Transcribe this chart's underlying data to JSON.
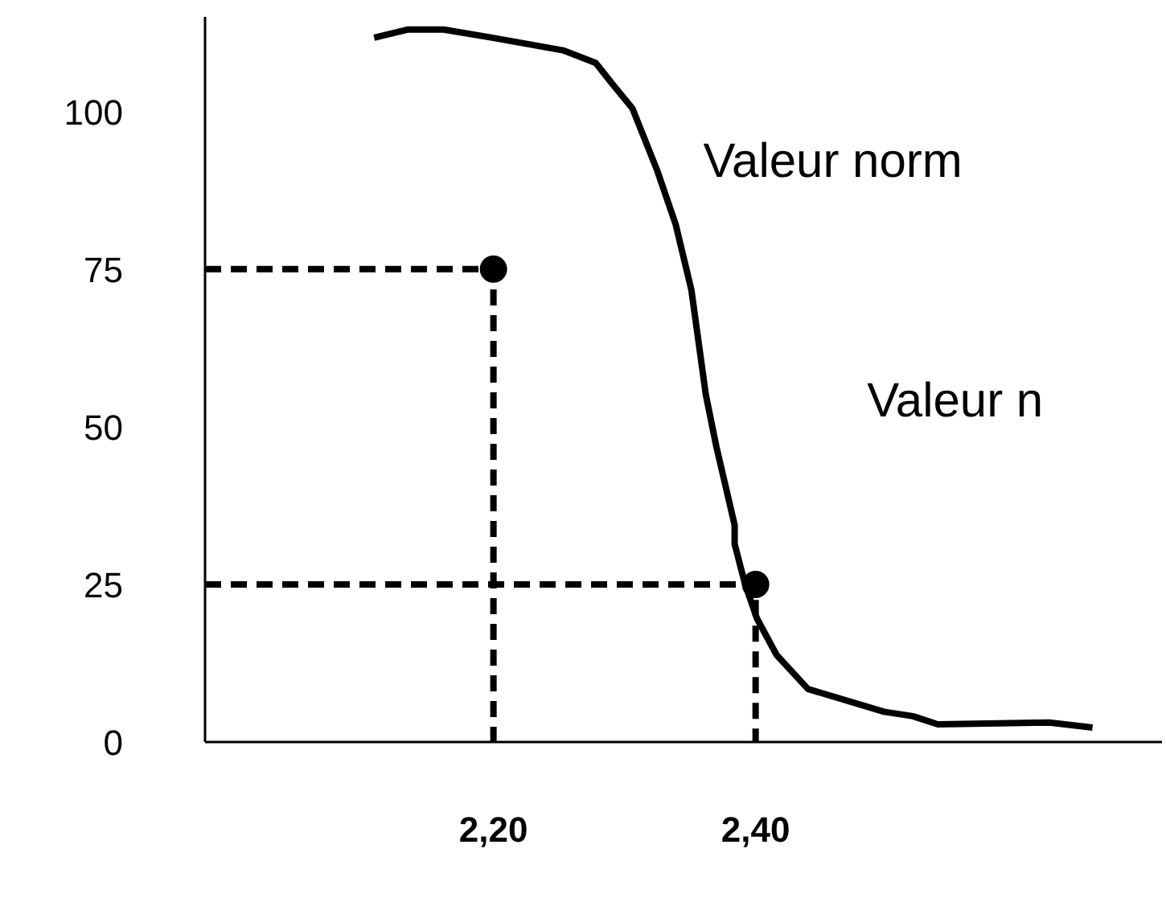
{
  "chart_data": {
    "type": "line",
    "xlim": [
      1.98,
      2.71
    ],
    "ylim": [
      0,
      115
    ],
    "xticks": [
      {
        "value": 2.2,
        "label": "2,20"
      },
      {
        "value": 2.4,
        "label": "2,40"
      }
    ],
    "yticks": [
      0,
      25,
      50,
      75,
      100
    ],
    "series": [
      {
        "color": "#000000",
        "line_style": "solid",
        "marker": "none",
        "x": [
          2.109,
          2.135,
          2.162,
          2.199,
          2.253,
          2.278,
          2.291,
          2.306,
          2.325,
          2.339,
          2.351,
          2.362,
          2.37,
          2.384,
          2.384,
          2.392,
          2.401,
          2.416,
          2.44,
          2.498,
          2.52,
          2.539,
          2.624,
          2.657
        ],
        "values": [
          111.7,
          113,
          113,
          111.7,
          109.7,
          107.7,
          104.3,
          100.5,
          90.6,
          82.1,
          71.7,
          55.1,
          46.9,
          34.4,
          31.4,
          25,
          19.6,
          13.8,
          8.4,
          4.8,
          4.1,
          2.8,
          3.1,
          2.3
        ]
      },
      {
        "type": "line",
        "color": "#000000",
        "line_style": "dashed",
        "marker": "none",
        "x": [
          1.98,
          2.2,
          2.2
        ],
        "values": [
          75,
          75,
          0
        ]
      },
      {
        "type": "line",
        "color": "#000000",
        "line_style": "dashed",
        "marker": "none",
        "x": [
          1.98,
          2.4,
          2.4
        ],
        "values": [
          25,
          25,
          0
        ]
      },
      {
        "type": "scatter",
        "color": "#000000",
        "marker": "circle",
        "x": [
          2.2,
          2.4
        ],
        "values": [
          75,
          25
        ]
      }
    ],
    "annotations": [
      "Valeur norm",
      "Valeur n"
    ]
  }
}
